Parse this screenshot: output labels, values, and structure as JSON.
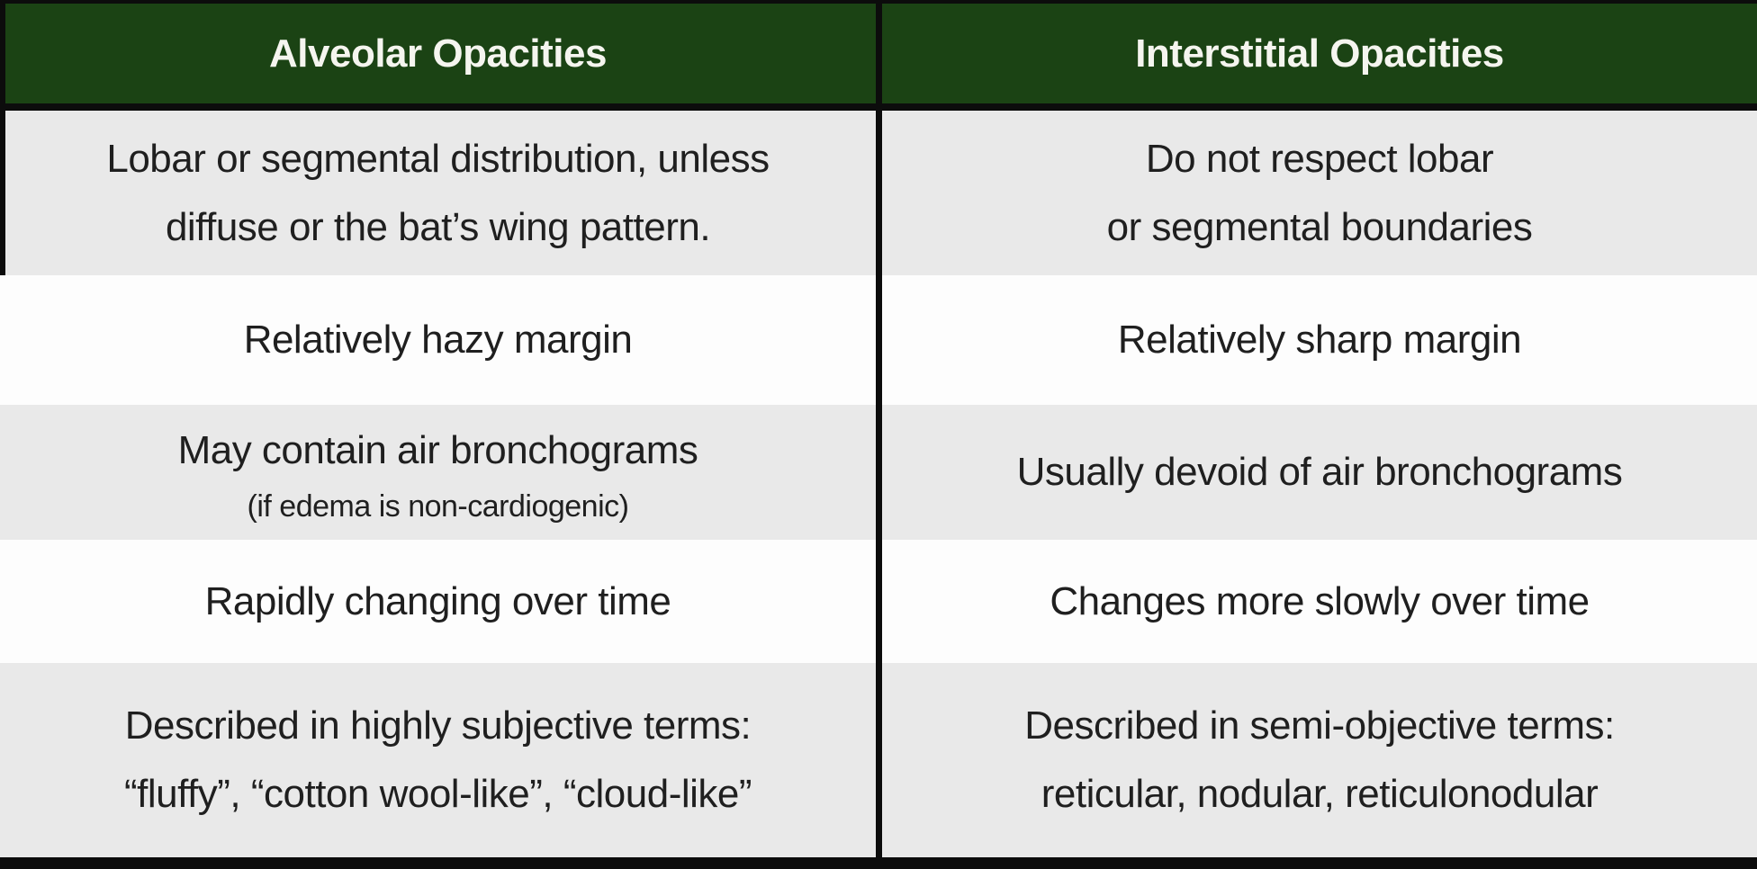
{
  "table": {
    "header": {
      "left": "Alveolar Opacities",
      "right": "Interstitial Opacities"
    },
    "rows": [
      {
        "left": {
          "lines": [
            "Lobar or segmental distribution, unless",
            "diffuse or the bat’s wing pattern."
          ]
        },
        "right": {
          "lines": [
            "Do not respect lobar",
            "or segmental boundaries"
          ]
        }
      },
      {
        "left": {
          "lines": [
            "Relatively hazy margin"
          ]
        },
        "right": {
          "lines": [
            "Relatively sharp margin"
          ]
        }
      },
      {
        "left": {
          "lines": [
            "May contain air bronchograms"
          ],
          "subline": "(if edema is non-cardiogenic)"
        },
        "right": {
          "lines": [
            "Usually devoid of air bronchograms"
          ]
        }
      },
      {
        "left": {
          "lines": [
            "Rapidly changing over time"
          ]
        },
        "right": {
          "lines": [
            "Changes more slowly over time"
          ]
        }
      },
      {
        "left": {
          "lines": [
            "Described in highly subjective terms:",
            "“fluffy”, “cotton wool-like”, “cloud-like”"
          ]
        },
        "right": {
          "lines": [
            "Described in semi-objective terms:",
            "reticular, nodular, reticulonodular"
          ]
        }
      }
    ]
  },
  "colors": {
    "header_bg": "#1b4314",
    "header_text": "#f5f5ef",
    "row_bg": "#fdfdfd",
    "row_alt_bg": "#e9e9e9",
    "border": "#0c0c0c",
    "text": "#1f1f1f"
  }
}
